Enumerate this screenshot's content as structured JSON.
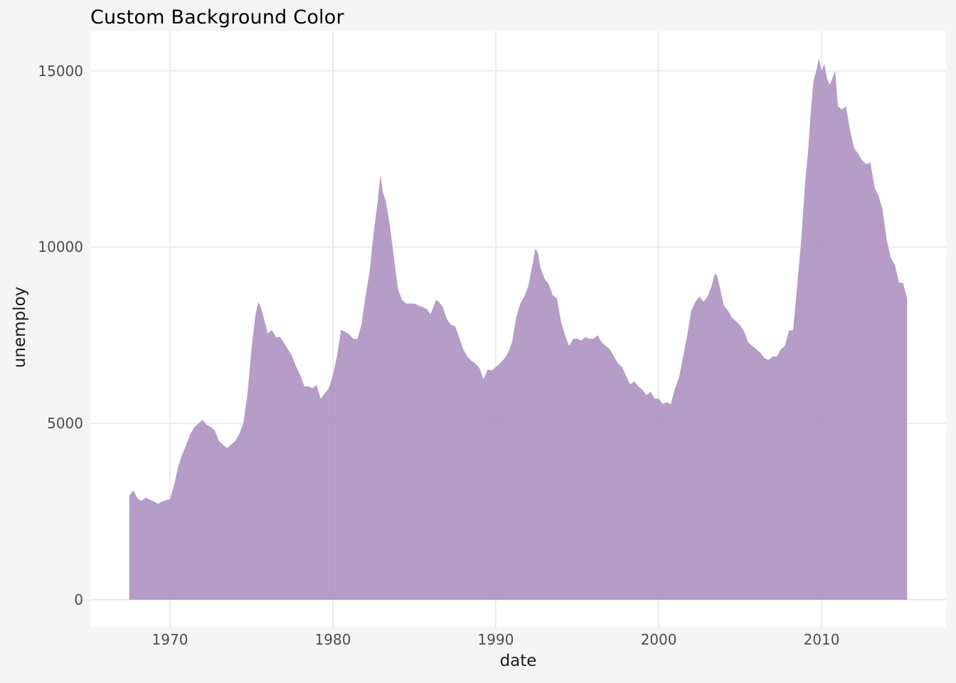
{
  "title": "Custom Background Color",
  "chart_data": {
    "type": "area",
    "title": "Custom Background Color",
    "xlabel": "date",
    "ylabel": "unemploy",
    "x_ticks": [
      1970,
      1980,
      1990,
      2000,
      2010
    ],
    "y_ticks": [
      0,
      5000,
      10000,
      15000
    ],
    "xlim": [
      1965.11,
      2017.64
    ],
    "ylim": [
      -768,
      16120
    ],
    "grid": "major-only",
    "legend": "none",
    "colors": {
      "area_fill": "#a88cbe",
      "area_fill_opacity": 0.85,
      "panel_background": "#ffffff",
      "plot_background": "#f5f5f5",
      "gridline": "#ebebeb",
      "tick_label": "#4d4d4d",
      "axis_title": "#1a1a1a",
      "title": "#000000"
    },
    "series": [
      {
        "name": "unemploy",
        "points": [
          [
            1967.5,
            2944
          ],
          [
            1967.75,
            3100
          ],
          [
            1968,
            2880
          ],
          [
            1968.25,
            2800
          ],
          [
            1968.5,
            2900
          ],
          [
            1968.75,
            2840
          ],
          [
            1969,
            2790
          ],
          [
            1969.25,
            2720
          ],
          [
            1969.5,
            2780
          ],
          [
            1969.75,
            2820
          ],
          [
            1970,
            2850
          ],
          [
            1970.25,
            3250
          ],
          [
            1970.5,
            3770
          ],
          [
            1970.75,
            4120
          ],
          [
            1971,
            4400
          ],
          [
            1971.25,
            4700
          ],
          [
            1971.5,
            4900
          ],
          [
            1971.75,
            5000
          ],
          [
            1972,
            5100
          ],
          [
            1972.25,
            4960
          ],
          [
            1972.5,
            4900
          ],
          [
            1972.75,
            4800
          ],
          [
            1973,
            4500
          ],
          [
            1973.25,
            4400
          ],
          [
            1973.5,
            4300
          ],
          [
            1973.75,
            4400
          ],
          [
            1974,
            4500
          ],
          [
            1974.25,
            4700
          ],
          [
            1974.5,
            5000
          ],
          [
            1974.75,
            5800
          ],
          [
            1975,
            7100
          ],
          [
            1975.25,
            8100
          ],
          [
            1975.42,
            8430
          ],
          [
            1975.58,
            8300
          ],
          [
            1975.75,
            8000
          ],
          [
            1976,
            7550
          ],
          [
            1976.25,
            7650
          ],
          [
            1976.5,
            7450
          ],
          [
            1976.75,
            7450
          ],
          [
            1977,
            7280
          ],
          [
            1977.25,
            7100
          ],
          [
            1977.5,
            6900
          ],
          [
            1977.75,
            6600
          ],
          [
            1978,
            6370
          ],
          [
            1978.25,
            6050
          ],
          [
            1978.5,
            6050
          ],
          [
            1978.75,
            6000
          ],
          [
            1979,
            6090
          ],
          [
            1979.25,
            5700
          ],
          [
            1979.5,
            5850
          ],
          [
            1979.75,
            6000
          ],
          [
            1980,
            6370
          ],
          [
            1980.25,
            6900
          ],
          [
            1980.5,
            7655
          ],
          [
            1980.75,
            7600
          ],
          [
            1981,
            7530
          ],
          [
            1981.25,
            7400
          ],
          [
            1981.5,
            7390
          ],
          [
            1981.75,
            7800
          ],
          [
            1982,
            8600
          ],
          [
            1982.25,
            9300
          ],
          [
            1982.5,
            10400
          ],
          [
            1982.75,
            11300
          ],
          [
            1982.92,
            12050
          ],
          [
            1983.08,
            11540
          ],
          [
            1983.25,
            11300
          ],
          [
            1983.5,
            10600
          ],
          [
            1983.75,
            9700
          ],
          [
            1984,
            8800
          ],
          [
            1984.25,
            8500
          ],
          [
            1984.5,
            8400
          ],
          [
            1984.75,
            8400
          ],
          [
            1985,
            8400
          ],
          [
            1985.25,
            8350
          ],
          [
            1985.5,
            8300
          ],
          [
            1985.75,
            8250
          ],
          [
            1986,
            8100
          ],
          [
            1986.33,
            8500
          ],
          [
            1986.5,
            8450
          ],
          [
            1986.75,
            8300
          ],
          [
            1987,
            7950
          ],
          [
            1987.25,
            7800
          ],
          [
            1987.5,
            7760
          ],
          [
            1987.75,
            7450
          ],
          [
            1988,
            7100
          ],
          [
            1988.25,
            6900
          ],
          [
            1988.5,
            6780
          ],
          [
            1988.75,
            6700
          ],
          [
            1989,
            6570
          ],
          [
            1989.25,
            6250
          ],
          [
            1989.5,
            6530
          ],
          [
            1989.75,
            6500
          ],
          [
            1990,
            6600
          ],
          [
            1990.25,
            6700
          ],
          [
            1990.5,
            6820
          ],
          [
            1990.75,
            7000
          ],
          [
            1991,
            7300
          ],
          [
            1991.25,
            8000
          ],
          [
            1991.5,
            8400
          ],
          [
            1991.75,
            8600
          ],
          [
            1992,
            8900
          ],
          [
            1992.25,
            9500
          ],
          [
            1992.42,
            9950
          ],
          [
            1992.58,
            9850
          ],
          [
            1992.75,
            9400
          ],
          [
            1993,
            9100
          ],
          [
            1993.25,
            8950
          ],
          [
            1993.5,
            8630
          ],
          [
            1993.75,
            8550
          ],
          [
            1994,
            7900
          ],
          [
            1994.25,
            7500
          ],
          [
            1994.5,
            7200
          ],
          [
            1994.75,
            7400
          ],
          [
            1995,
            7400
          ],
          [
            1995.25,
            7350
          ],
          [
            1995.5,
            7450
          ],
          [
            1995.75,
            7400
          ],
          [
            1996,
            7400
          ],
          [
            1996.25,
            7500
          ],
          [
            1996.5,
            7300
          ],
          [
            1996.75,
            7200
          ],
          [
            1997,
            7100
          ],
          [
            1997.25,
            6900
          ],
          [
            1997.5,
            6700
          ],
          [
            1997.75,
            6600
          ],
          [
            1998,
            6350
          ],
          [
            1998.25,
            6100
          ],
          [
            1998.5,
            6200
          ],
          [
            1998.75,
            6050
          ],
          [
            1999,
            5950
          ],
          [
            1999.25,
            5800
          ],
          [
            1999.5,
            5900
          ],
          [
            1999.75,
            5700
          ],
          [
            2000,
            5700
          ],
          [
            2000.25,
            5550
          ],
          [
            2000.5,
            5600
          ],
          [
            2000.75,
            5550
          ],
          [
            2001,
            6000
          ],
          [
            2001.25,
            6300
          ],
          [
            2001.5,
            6900
          ],
          [
            2001.75,
            7500
          ],
          [
            2002,
            8200
          ],
          [
            2002.25,
            8450
          ],
          [
            2002.5,
            8600
          ],
          [
            2002.75,
            8450
          ],
          [
            2003,
            8600
          ],
          [
            2003.25,
            8900
          ],
          [
            2003.45,
            9250
          ],
          [
            2003.58,
            9200
          ],
          [
            2003.75,
            8870
          ],
          [
            2004,
            8350
          ],
          [
            2004.25,
            8200
          ],
          [
            2004.5,
            8000
          ],
          [
            2004.75,
            7900
          ],
          [
            2005,
            7780
          ],
          [
            2005.25,
            7600
          ],
          [
            2005.5,
            7300
          ],
          [
            2005.75,
            7200
          ],
          [
            2006,
            7100
          ],
          [
            2006.25,
            7000
          ],
          [
            2006.5,
            6850
          ],
          [
            2006.75,
            6800
          ],
          [
            2007,
            6900
          ],
          [
            2007.25,
            6900
          ],
          [
            2007.5,
            7100
          ],
          [
            2007.75,
            7200
          ],
          [
            2008,
            7630
          ],
          [
            2008.25,
            7640
          ],
          [
            2008.5,
            8900
          ],
          [
            2008.75,
            10200
          ],
          [
            2009,
            11900
          ],
          [
            2009.17,
            12700
          ],
          [
            2009.33,
            13800
          ],
          [
            2009.5,
            14700
          ],
          [
            2009.67,
            15000
          ],
          [
            2009.83,
            15352
          ],
          [
            2010,
            15000
          ],
          [
            2010.17,
            15200
          ],
          [
            2010.33,
            14800
          ],
          [
            2010.5,
            14600
          ],
          [
            2010.83,
            15000
          ],
          [
            2011,
            14000
          ],
          [
            2011.25,
            13900
          ],
          [
            2011.5,
            14000
          ],
          [
            2011.75,
            13300
          ],
          [
            2012,
            12800
          ],
          [
            2012.25,
            12650
          ],
          [
            2012.5,
            12450
          ],
          [
            2012.75,
            12350
          ],
          [
            2013,
            12400
          ],
          [
            2013.25,
            11700
          ],
          [
            2013.5,
            11450
          ],
          [
            2013.75,
            11050
          ],
          [
            2014,
            10200
          ],
          [
            2014.25,
            9700
          ],
          [
            2014.5,
            9500
          ],
          [
            2014.75,
            9000
          ],
          [
            2015,
            8980
          ],
          [
            2015.25,
            8549
          ]
        ]
      }
    ]
  }
}
